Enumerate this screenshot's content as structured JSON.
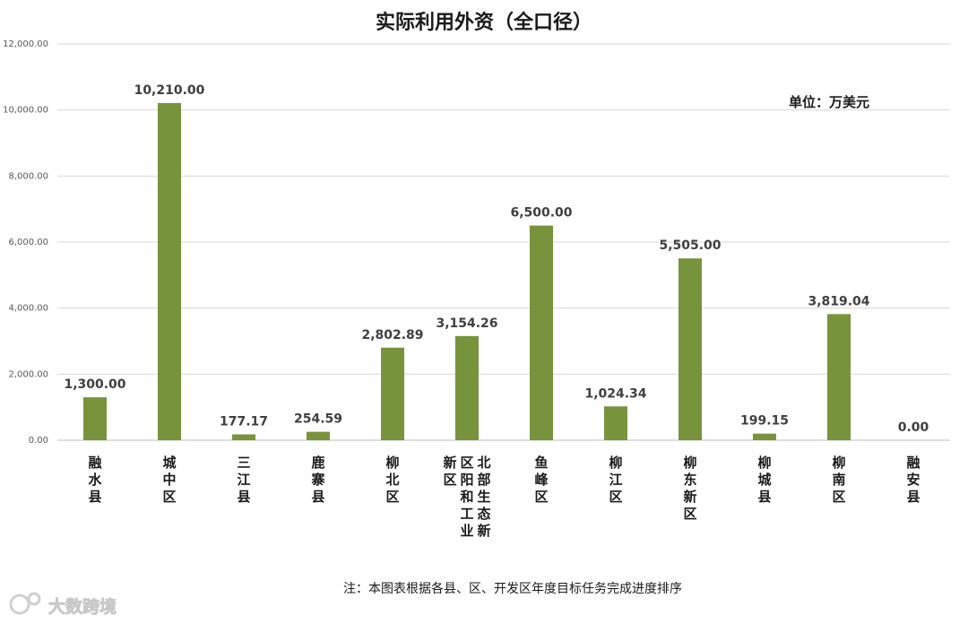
{
  "chart_data": {
    "type": "bar",
    "title": "实际利用外资（全口径）",
    "unit_label": "单位：万美元",
    "categories": [
      "融水县",
      "城中区",
      "三江县",
      "鹿寨县",
      "柳北区",
      "北部生态新区阳和工业新区",
      "鱼峰区",
      "柳江区",
      "柳东新区",
      "柳城县",
      "柳南区",
      "融安县"
    ],
    "values": [
      1300.0,
      10210.0,
      177.17,
      254.59,
      2802.89,
      3154.26,
      6500.0,
      1024.34,
      5505.0,
      199.15,
      3819.04,
      0.0
    ],
    "data_labels": [
      "1,300.00",
      "10,210.00",
      "177.17",
      "254.59",
      "2,802.89",
      "3,154.26",
      "6,500.00",
      "1,024.34",
      "5,505.00",
      "199.15",
      "3,819.04",
      "0.00"
    ],
    "y_ticks": [
      "0.00",
      "2,000.00",
      "4,000.00",
      "6,000.00",
      "8,000.00",
      "10,000.00",
      "12,000.00"
    ],
    "ylim": [
      0,
      12000
    ],
    "grid": true,
    "legend": "none",
    "bar_color": "#77933c",
    "note": "注：本图表根据各县、区、开发区年度目标任务完成进度排序"
  },
  "watermark": "大数跨境"
}
